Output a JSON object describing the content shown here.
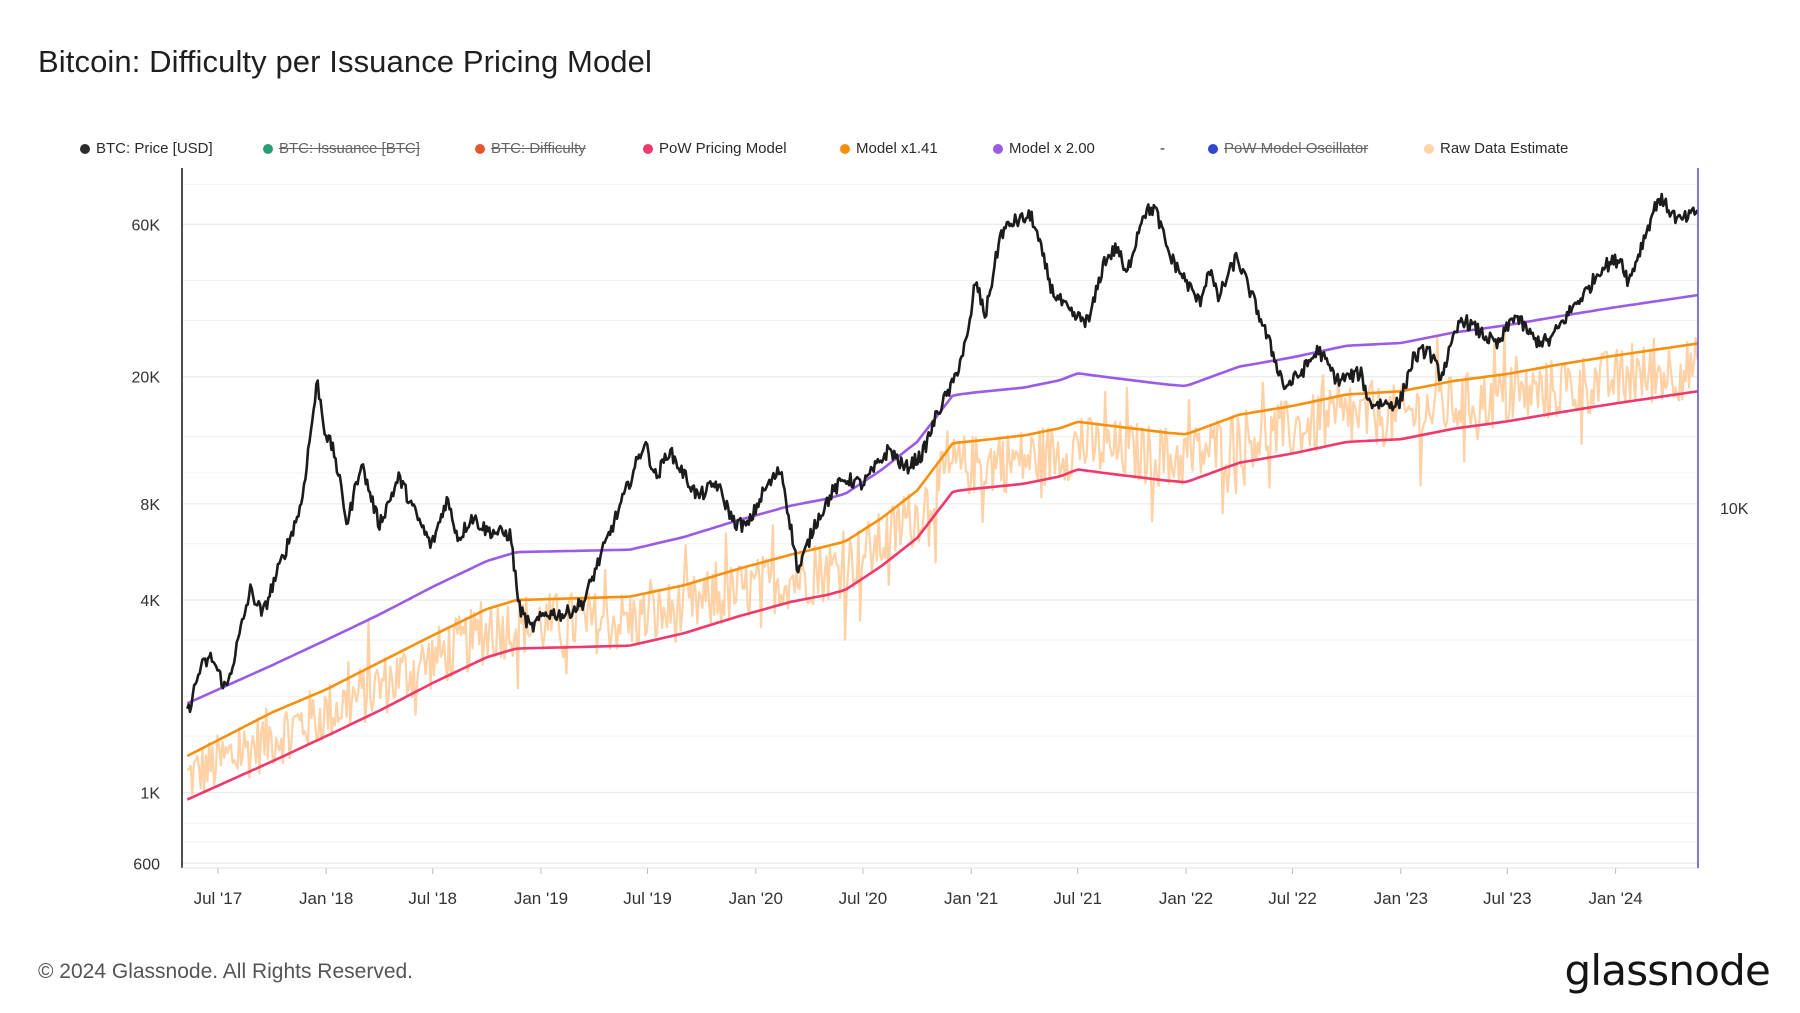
{
  "chart_data": {
    "type": "line",
    "title": "Bitcoin: Difficulty per Issuance Pricing Model",
    "yscale": "log",
    "ylim": [
      580,
      90000
    ],
    "y_ticks": [
      {
        "value": 600,
        "label": "600"
      },
      {
        "value": 1000,
        "label": "1K"
      },
      {
        "value": 4000,
        "label": "4K"
      },
      {
        "value": 8000,
        "label": "8K"
      },
      {
        "value": 20000,
        "label": "20K"
      },
      {
        "value": 60000,
        "label": "60K"
      }
    ],
    "y_right_ticks": [
      {
        "value": 10000,
        "label": "10K"
      }
    ],
    "xlim": [
      "2017-05-01",
      "2024-05-20"
    ],
    "x_ticks": [
      {
        "date": "2017-07-01",
        "label": "Jul '17"
      },
      {
        "date": "2018-01-01",
        "label": "Jan '18"
      },
      {
        "date": "2018-07-01",
        "label": "Jul '18"
      },
      {
        "date": "2019-01-01",
        "label": "Jan '19"
      },
      {
        "date": "2019-07-01",
        "label": "Jul '19"
      },
      {
        "date": "2020-01-01",
        "label": "Jan '20"
      },
      {
        "date": "2020-07-01",
        "label": "Jul '20"
      },
      {
        "date": "2021-01-01",
        "label": "Jan '21"
      },
      {
        "date": "2021-07-01",
        "label": "Jul '21"
      },
      {
        "date": "2022-01-01",
        "label": "Jan '22"
      },
      {
        "date": "2022-07-01",
        "label": "Jul '22"
      },
      {
        "date": "2023-01-01",
        "label": "Jan '23"
      },
      {
        "date": "2023-07-01",
        "label": "Jul '23"
      },
      {
        "date": "2024-01-01",
        "label": "Jan '24"
      }
    ],
    "grid": true,
    "legend_position": "top",
    "legend": [
      {
        "name": "BTC: Price [USD]",
        "color": "#2b2b2b",
        "hidden": false
      },
      {
        "name": "BTC: Issuance [BTC]",
        "color": "#2a9d76",
        "hidden": true
      },
      {
        "name": "BTC: Difficulty",
        "color": "#e4572e",
        "hidden": true
      },
      {
        "name": "PoW Pricing Model",
        "color": "#f0386b",
        "hidden": false
      },
      {
        "name": "Model x1.41",
        "color": "#f6900d",
        "hidden": false
      },
      {
        "name": "Model x 2.00",
        "color": "#9a5ce6",
        "hidden": false
      },
      {
        "name": "-",
        "color": "",
        "hidden": false
      },
      {
        "name": "PoW Model Oscillator",
        "color": "#2f46d4",
        "hidden": true
      },
      {
        "name": "Raw Data Estimate",
        "color": "#ffd3a6",
        "hidden": false
      }
    ],
    "series": [
      {
        "name": "BTC: Price [USD]",
        "color": "#1c1c1c",
        "points": [
          [
            "2017-05-10",
            1750
          ],
          [
            "2017-06-01",
            2450
          ],
          [
            "2017-06-20",
            2650
          ],
          [
            "2017-07-15",
            2100
          ],
          [
            "2017-08-01",
            2800
          ],
          [
            "2017-08-25",
            4300
          ],
          [
            "2017-09-15",
            3600
          ],
          [
            "2017-10-01",
            4400
          ],
          [
            "2017-10-25",
            5800
          ],
          [
            "2017-11-20",
            8000
          ],
          [
            "2017-12-08",
            14500
          ],
          [
            "2017-12-17",
            19300
          ],
          [
            "2017-12-30",
            13500
          ],
          [
            "2018-01-15",
            11500
          ],
          [
            "2018-02-06",
            6900
          ],
          [
            "2018-03-01",
            10800
          ],
          [
            "2018-04-01",
            6900
          ],
          [
            "2018-05-05",
            9700
          ],
          [
            "2018-06-01",
            7500
          ],
          [
            "2018-06-29",
            5900
          ],
          [
            "2018-07-25",
            8300
          ],
          [
            "2018-08-14",
            6200
          ],
          [
            "2018-09-05",
            7300
          ],
          [
            "2018-10-01",
            6600
          ],
          [
            "2018-11-10",
            6400
          ],
          [
            "2018-11-25",
            3800
          ],
          [
            "2018-12-15",
            3250
          ],
          [
            "2019-01-10",
            3650
          ],
          [
            "2019-02-10",
            3600
          ],
          [
            "2019-03-15",
            3950
          ],
          [
            "2019-04-03",
            4950
          ],
          [
            "2019-05-15",
            7800
          ],
          [
            "2019-06-26",
            12500
          ],
          [
            "2019-07-16",
            9600
          ],
          [
            "2019-08-06",
            11800
          ],
          [
            "2019-09-25",
            8400
          ],
          [
            "2019-10-26",
            9300
          ],
          [
            "2019-11-25",
            7000
          ],
          [
            "2019-12-18",
            6800
          ],
          [
            "2020-01-15",
            8800
          ],
          [
            "2020-02-13",
            10300
          ],
          [
            "2020-03-13",
            4900
          ],
          [
            "2020-04-10",
            6900
          ],
          [
            "2020-05-10",
            8700
          ],
          [
            "2020-06-01",
            9600
          ],
          [
            "2020-07-01",
            9200
          ],
          [
            "2020-08-15",
            11900
          ],
          [
            "2020-09-10",
            10300
          ],
          [
            "2020-10-10",
            11400
          ],
          [
            "2020-11-05",
            15500
          ],
          [
            "2020-12-01",
            19000
          ],
          [
            "2020-12-27",
            27000
          ],
          [
            "2021-01-08",
            40000
          ],
          [
            "2021-01-25",
            31000
          ],
          [
            "2021-02-20",
            56000
          ],
          [
            "2021-03-13",
            61000
          ],
          [
            "2021-04-14",
            63500
          ],
          [
            "2021-05-19",
            37000
          ],
          [
            "2021-06-22",
            31000
          ],
          [
            "2021-07-20",
            29800
          ],
          [
            "2021-08-15",
            46000
          ],
          [
            "2021-09-07",
            51000
          ],
          [
            "2021-09-21",
            41000
          ],
          [
            "2021-10-20",
            65000
          ],
          [
            "2021-11-09",
            67500
          ],
          [
            "2021-12-04",
            48000
          ],
          [
            "2022-01-24",
            34000
          ],
          [
            "2022-02-10",
            44000
          ],
          [
            "2022-02-24",
            35000
          ],
          [
            "2022-03-28",
            47500
          ],
          [
            "2022-05-09",
            30000
          ],
          [
            "2022-06-18",
            18500
          ],
          [
            "2022-07-15",
            20500
          ],
          [
            "2022-08-14",
            24300
          ],
          [
            "2022-09-15",
            19500
          ],
          [
            "2022-10-25",
            20500
          ],
          [
            "2022-11-09",
            16500
          ],
          [
            "2022-12-30",
            16500
          ],
          [
            "2023-01-22",
            22800
          ],
          [
            "2023-02-16",
            24500
          ],
          [
            "2023-03-10",
            20000
          ],
          [
            "2023-04-14",
            30500
          ],
          [
            "2023-06-15",
            25000
          ],
          [
            "2023-07-13",
            31300
          ],
          [
            "2023-08-17",
            26000
          ],
          [
            "2023-09-10",
            25800
          ],
          [
            "2023-10-23",
            33500
          ],
          [
            "2023-11-15",
            37500
          ],
          [
            "2023-12-08",
            44000
          ],
          [
            "2024-01-10",
            47000
          ],
          [
            "2024-01-23",
            39500
          ],
          [
            "2024-02-28",
            61000
          ],
          [
            "2024-03-14",
            73000
          ],
          [
            "2024-04-17",
            61500
          ],
          [
            "2024-05-07",
            63500
          ],
          [
            "2024-05-19",
            66500
          ]
        ]
      },
      {
        "name": "Model x 2.00",
        "color": "#9a5ce6",
        "points": [
          [
            "2017-05-10",
            1900
          ],
          [
            "2017-10-01",
            2500
          ],
          [
            "2018-01-01",
            3000
          ],
          [
            "2018-04-01",
            3600
          ],
          [
            "2018-07-01",
            4400
          ],
          [
            "2018-10-01",
            5300
          ],
          [
            "2018-11-20",
            5650
          ],
          [
            "2019-03-01",
            5700
          ],
          [
            "2019-06-01",
            5750
          ],
          [
            "2019-09-01",
            6300
          ],
          [
            "2019-12-01",
            7100
          ],
          [
            "2020-03-01",
            7900
          ],
          [
            "2020-05-01",
            8300
          ],
          [
            "2020-06-01",
            8600
          ],
          [
            "2020-08-01",
            10200
          ],
          [
            "2020-10-01",
            12500
          ],
          [
            "2020-12-01",
            17500
          ],
          [
            "2021-01-01",
            17800
          ],
          [
            "2021-04-01",
            18500
          ],
          [
            "2021-06-01",
            19500
          ],
          [
            "2021-07-01",
            20500
          ],
          [
            "2021-09-01",
            19800
          ],
          [
            "2021-12-01",
            18900
          ],
          [
            "2022-01-01",
            18700
          ],
          [
            "2022-04-01",
            21500
          ],
          [
            "2022-07-01",
            23000
          ],
          [
            "2022-10-01",
            25000
          ],
          [
            "2023-01-01",
            25500
          ],
          [
            "2023-04-01",
            27500
          ],
          [
            "2023-07-01",
            29000
          ],
          [
            "2023-10-01",
            31000
          ],
          [
            "2024-01-01",
            33000
          ],
          [
            "2024-05-19",
            36000
          ]
        ]
      },
      {
        "name": "Model x1.41",
        "color": "#f6900d",
        "points": [
          [
            "2017-05-10",
            1300
          ],
          [
            "2017-10-01",
            1780
          ],
          [
            "2018-01-01",
            2100
          ],
          [
            "2018-04-01",
            2550
          ],
          [
            "2018-07-01",
            3100
          ],
          [
            "2018-10-01",
            3750
          ],
          [
            "2018-11-20",
            4000
          ],
          [
            "2019-03-01",
            4050
          ],
          [
            "2019-06-01",
            4100
          ],
          [
            "2019-09-01",
            4450
          ],
          [
            "2019-12-01",
            5000
          ],
          [
            "2020-03-01",
            5550
          ],
          [
            "2020-05-01",
            5900
          ],
          [
            "2020-06-01",
            6100
          ],
          [
            "2020-08-01",
            7200
          ],
          [
            "2020-10-01",
            8800
          ],
          [
            "2020-12-01",
            12400
          ],
          [
            "2021-01-01",
            12550
          ],
          [
            "2021-04-01",
            13100
          ],
          [
            "2021-06-01",
            13800
          ],
          [
            "2021-07-01",
            14450
          ],
          [
            "2021-09-01",
            14000
          ],
          [
            "2021-12-01",
            13350
          ],
          [
            "2022-01-01",
            13200
          ],
          [
            "2022-04-01",
            15200
          ],
          [
            "2022-07-01",
            16200
          ],
          [
            "2022-10-01",
            17600
          ],
          [
            "2023-01-01",
            18000
          ],
          [
            "2023-04-01",
            19400
          ],
          [
            "2023-07-01",
            20400
          ],
          [
            "2023-10-01",
            21900
          ],
          [
            "2024-01-01",
            23300
          ],
          [
            "2024-05-19",
            25400
          ]
        ]
      },
      {
        "name": "PoW Pricing Model",
        "color": "#f0386b",
        "points": [
          [
            "2017-05-10",
            950
          ],
          [
            "2017-10-01",
            1250
          ],
          [
            "2018-01-01",
            1500
          ],
          [
            "2018-04-01",
            1800
          ],
          [
            "2018-07-01",
            2200
          ],
          [
            "2018-10-01",
            2650
          ],
          [
            "2018-11-20",
            2820
          ],
          [
            "2019-03-01",
            2850
          ],
          [
            "2019-06-01",
            2880
          ],
          [
            "2019-09-01",
            3150
          ],
          [
            "2019-12-01",
            3550
          ],
          [
            "2020-03-01",
            3950
          ],
          [
            "2020-05-01",
            4150
          ],
          [
            "2020-06-01",
            4300
          ],
          [
            "2020-08-01",
            5100
          ],
          [
            "2020-10-01",
            6250
          ],
          [
            "2020-12-01",
            8750
          ],
          [
            "2021-01-01",
            8900
          ],
          [
            "2021-04-01",
            9250
          ],
          [
            "2021-06-01",
            9750
          ],
          [
            "2021-07-01",
            10250
          ],
          [
            "2021-09-01",
            9900
          ],
          [
            "2021-12-01",
            9450
          ],
          [
            "2022-01-01",
            9350
          ],
          [
            "2022-04-01",
            10750
          ],
          [
            "2022-07-01",
            11500
          ],
          [
            "2022-10-01",
            12500
          ],
          [
            "2023-01-01",
            12750
          ],
          [
            "2023-04-01",
            13750
          ],
          [
            "2023-07-01",
            14500
          ],
          [
            "2023-10-01",
            15500
          ],
          [
            "2024-01-01",
            16500
          ],
          [
            "2024-05-19",
            18000
          ]
        ]
      },
      {
        "name": "Raw Data Estimate",
        "color": "#ffc995",
        "noise": "high-frequency scatter around Model x1.41 between PoW Pricing Model and Model x1.41"
      }
    ]
  },
  "footer": {
    "copyright": "© 2024 Glassnode. All Rights Reserved.",
    "brand": "glassnode"
  }
}
